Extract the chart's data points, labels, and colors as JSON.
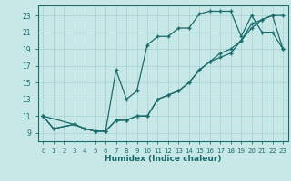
{
  "xlabel": "Humidex (Indice chaleur)",
  "xlim": [
    -0.5,
    23.5
  ],
  "ylim": [
    8.0,
    24.2
  ],
  "xticks": [
    0,
    1,
    2,
    3,
    4,
    5,
    6,
    7,
    8,
    9,
    10,
    11,
    12,
    13,
    14,
    15,
    16,
    17,
    18,
    19,
    20,
    21,
    22,
    23
  ],
  "yticks": [
    9,
    11,
    13,
    15,
    17,
    19,
    21,
    23
  ],
  "bg_color": "#c8e8e8",
  "grid_color": "#aad4d4",
  "line_color": "#1a6b6b",
  "line1_x": [
    0,
    1,
    3,
    4,
    5,
    6,
    7,
    8,
    9,
    10,
    11,
    12,
    13,
    14,
    15,
    16,
    17,
    18,
    19,
    20,
    21,
    22,
    23
  ],
  "line1_y": [
    11,
    9.5,
    10,
    9.5,
    9.2,
    9.2,
    10.5,
    10.5,
    11,
    11,
    13,
    13.5,
    14,
    15,
    16.5,
    17.5,
    18,
    18.5,
    20,
    21.5,
    22.5,
    23,
    23
  ],
  "line2_x": [
    0,
    1,
    3,
    4,
    5,
    6,
    7,
    8,
    9,
    10,
    11,
    12,
    13,
    14,
    15,
    16,
    17,
    18,
    19,
    20,
    21,
    22,
    23
  ],
  "line2_y": [
    11,
    9.5,
    10,
    9.5,
    9.2,
    9.2,
    16.5,
    13,
    14,
    19.5,
    20.5,
    20.5,
    21.5,
    21.5,
    23.2,
    23.5,
    23.5,
    23.5,
    20.5,
    23,
    21,
    21,
    19
  ],
  "line3_x": [
    0,
    3,
    4,
    5,
    6,
    7,
    8,
    9,
    10,
    11,
    12,
    13,
    14,
    15,
    16,
    17,
    18,
    19,
    20,
    21,
    22,
    23
  ],
  "line3_y": [
    11,
    10,
    9.5,
    9.2,
    9.2,
    10.5,
    10.5,
    11,
    11,
    13,
    13.5,
    14,
    15,
    16.5,
    17.5,
    18.5,
    19,
    20,
    22,
    22.5,
    23,
    19
  ]
}
